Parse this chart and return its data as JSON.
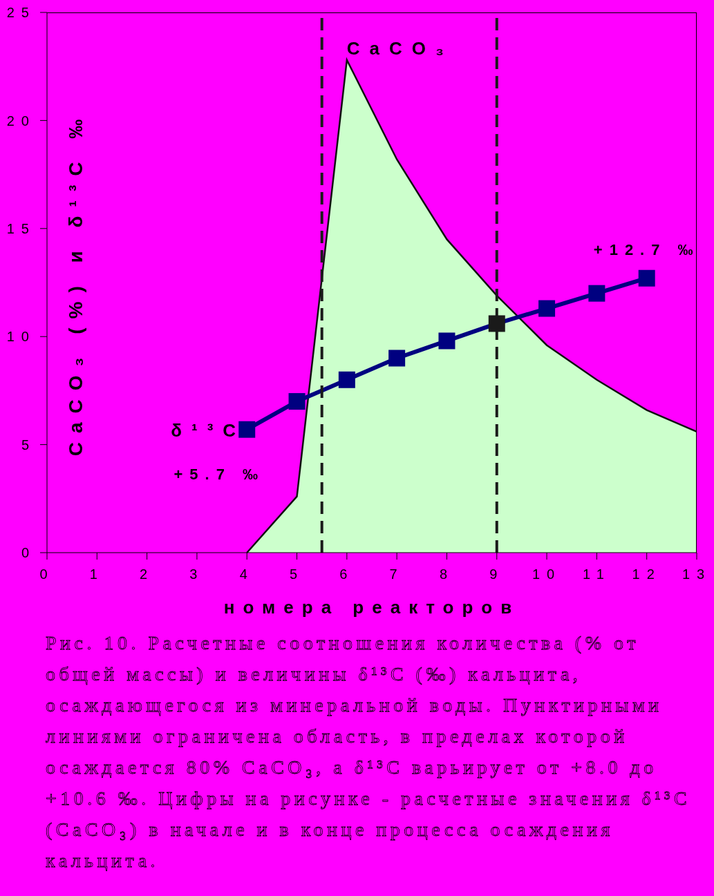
{
  "chart_data": {
    "type": "area",
    "xlabel": "номера реакторов",
    "ylabel": "CaCO₃ (%) и δ¹³C ‰",
    "x": [
      4,
      5,
      6,
      7,
      8,
      9,
      10,
      11,
      12,
      13
    ],
    "series": [
      {
        "name": "CaCO₃",
        "color": "#ccffcc",
        "values": [
          0,
          2.6,
          22.8,
          18.2,
          14.5,
          11.9,
          9.6,
          8.0,
          6.6,
          5.6
        ]
      },
      {
        "name": "δ¹³C",
        "type": "line",
        "color": "#000080",
        "marker": "square",
        "colors": [
          "#000080",
          "#000080",
          "#000080",
          "#000080",
          "#000080",
          "#1a1a1a",
          "#000080",
          "#000080",
          "#000080",
          null
        ],
        "values": [
          5.7,
          7.0,
          8.0,
          9.0,
          9.8,
          10.6,
          11.3,
          12.0,
          12.7,
          null
        ]
      }
    ],
    "xlim": [
      0,
      13
    ],
    "xticks": [
      0,
      1,
      2,
      3,
      4,
      5,
      6,
      7,
      8,
      9,
      10,
      11,
      12,
      13
    ],
    "ylim": [
      0,
      25
    ],
    "yticks": [
      0,
      5,
      10,
      15,
      20,
      25
    ],
    "ref_lines": [
      {
        "axis": "x",
        "value": 5.5,
        "color": "#1a1a1a",
        "line_style": "dashed"
      },
      {
        "axis": "x",
        "value": 9,
        "color": "#1a1a1a",
        "line_style": "dashed"
      }
    ],
    "annotations": [
      {
        "text": "+5.7 ‰",
        "x": 4,
        "y": 5.7
      },
      {
        "text": "+12.7 ‰",
        "x": 12,
        "y": 12.7
      },
      "Рис. 10. Расчетные соотношения количества (% от общей массы) и величины δ¹³C (‰) кальцита, осаждающегося из минеральной воды. Пунктирными линиями ограничена область, в пределах которой осаждается 80% CaCO₃, а δ¹³C варьирует от +8.0 до +10.6 ‰. Цифры на рисунке - расчетные значения δ¹³C (CaCO₃) в начале и в конце процесса осаждения кальцита."
    ],
    "grid": false,
    "legend": false
  }
}
